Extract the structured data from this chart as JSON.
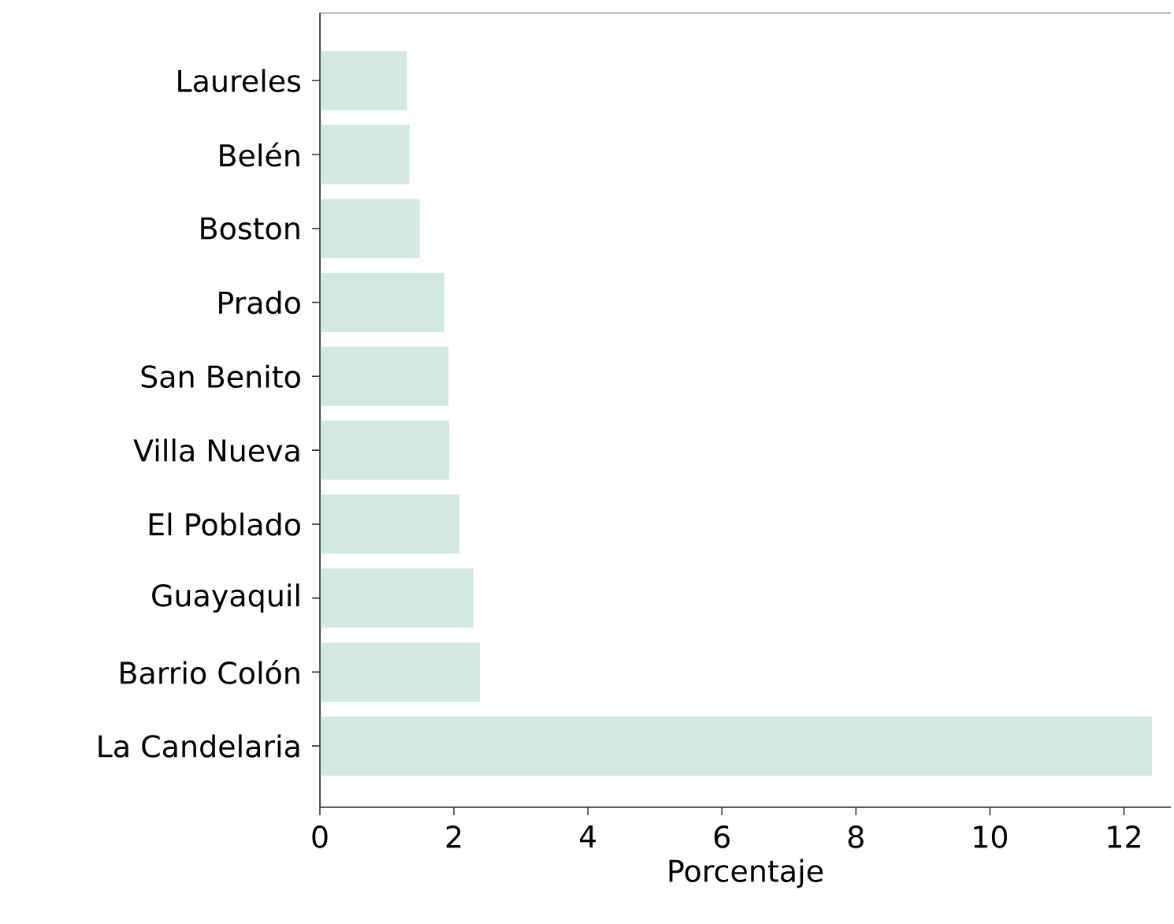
{
  "chart_data": {
    "type": "bar",
    "orientation": "horizontal",
    "xlabel": "Porcentaje",
    "categories": [
      "Laureles",
      "Belén",
      "Boston",
      "Prado",
      "San Benito",
      "Villa Nueva",
      "El Poblado",
      "Guayaquil",
      "Barrio Colón",
      "La Candelaria"
    ],
    "values": [
      1.3,
      1.34,
      1.49,
      1.86,
      1.92,
      1.93,
      2.08,
      2.29,
      2.39,
      12.42
    ],
    "color": "#d2e8e2",
    "xlim": [
      0,
      12.7
    ],
    "xticks": [
      0,
      2,
      4,
      6,
      8,
      10,
      12
    ]
  }
}
